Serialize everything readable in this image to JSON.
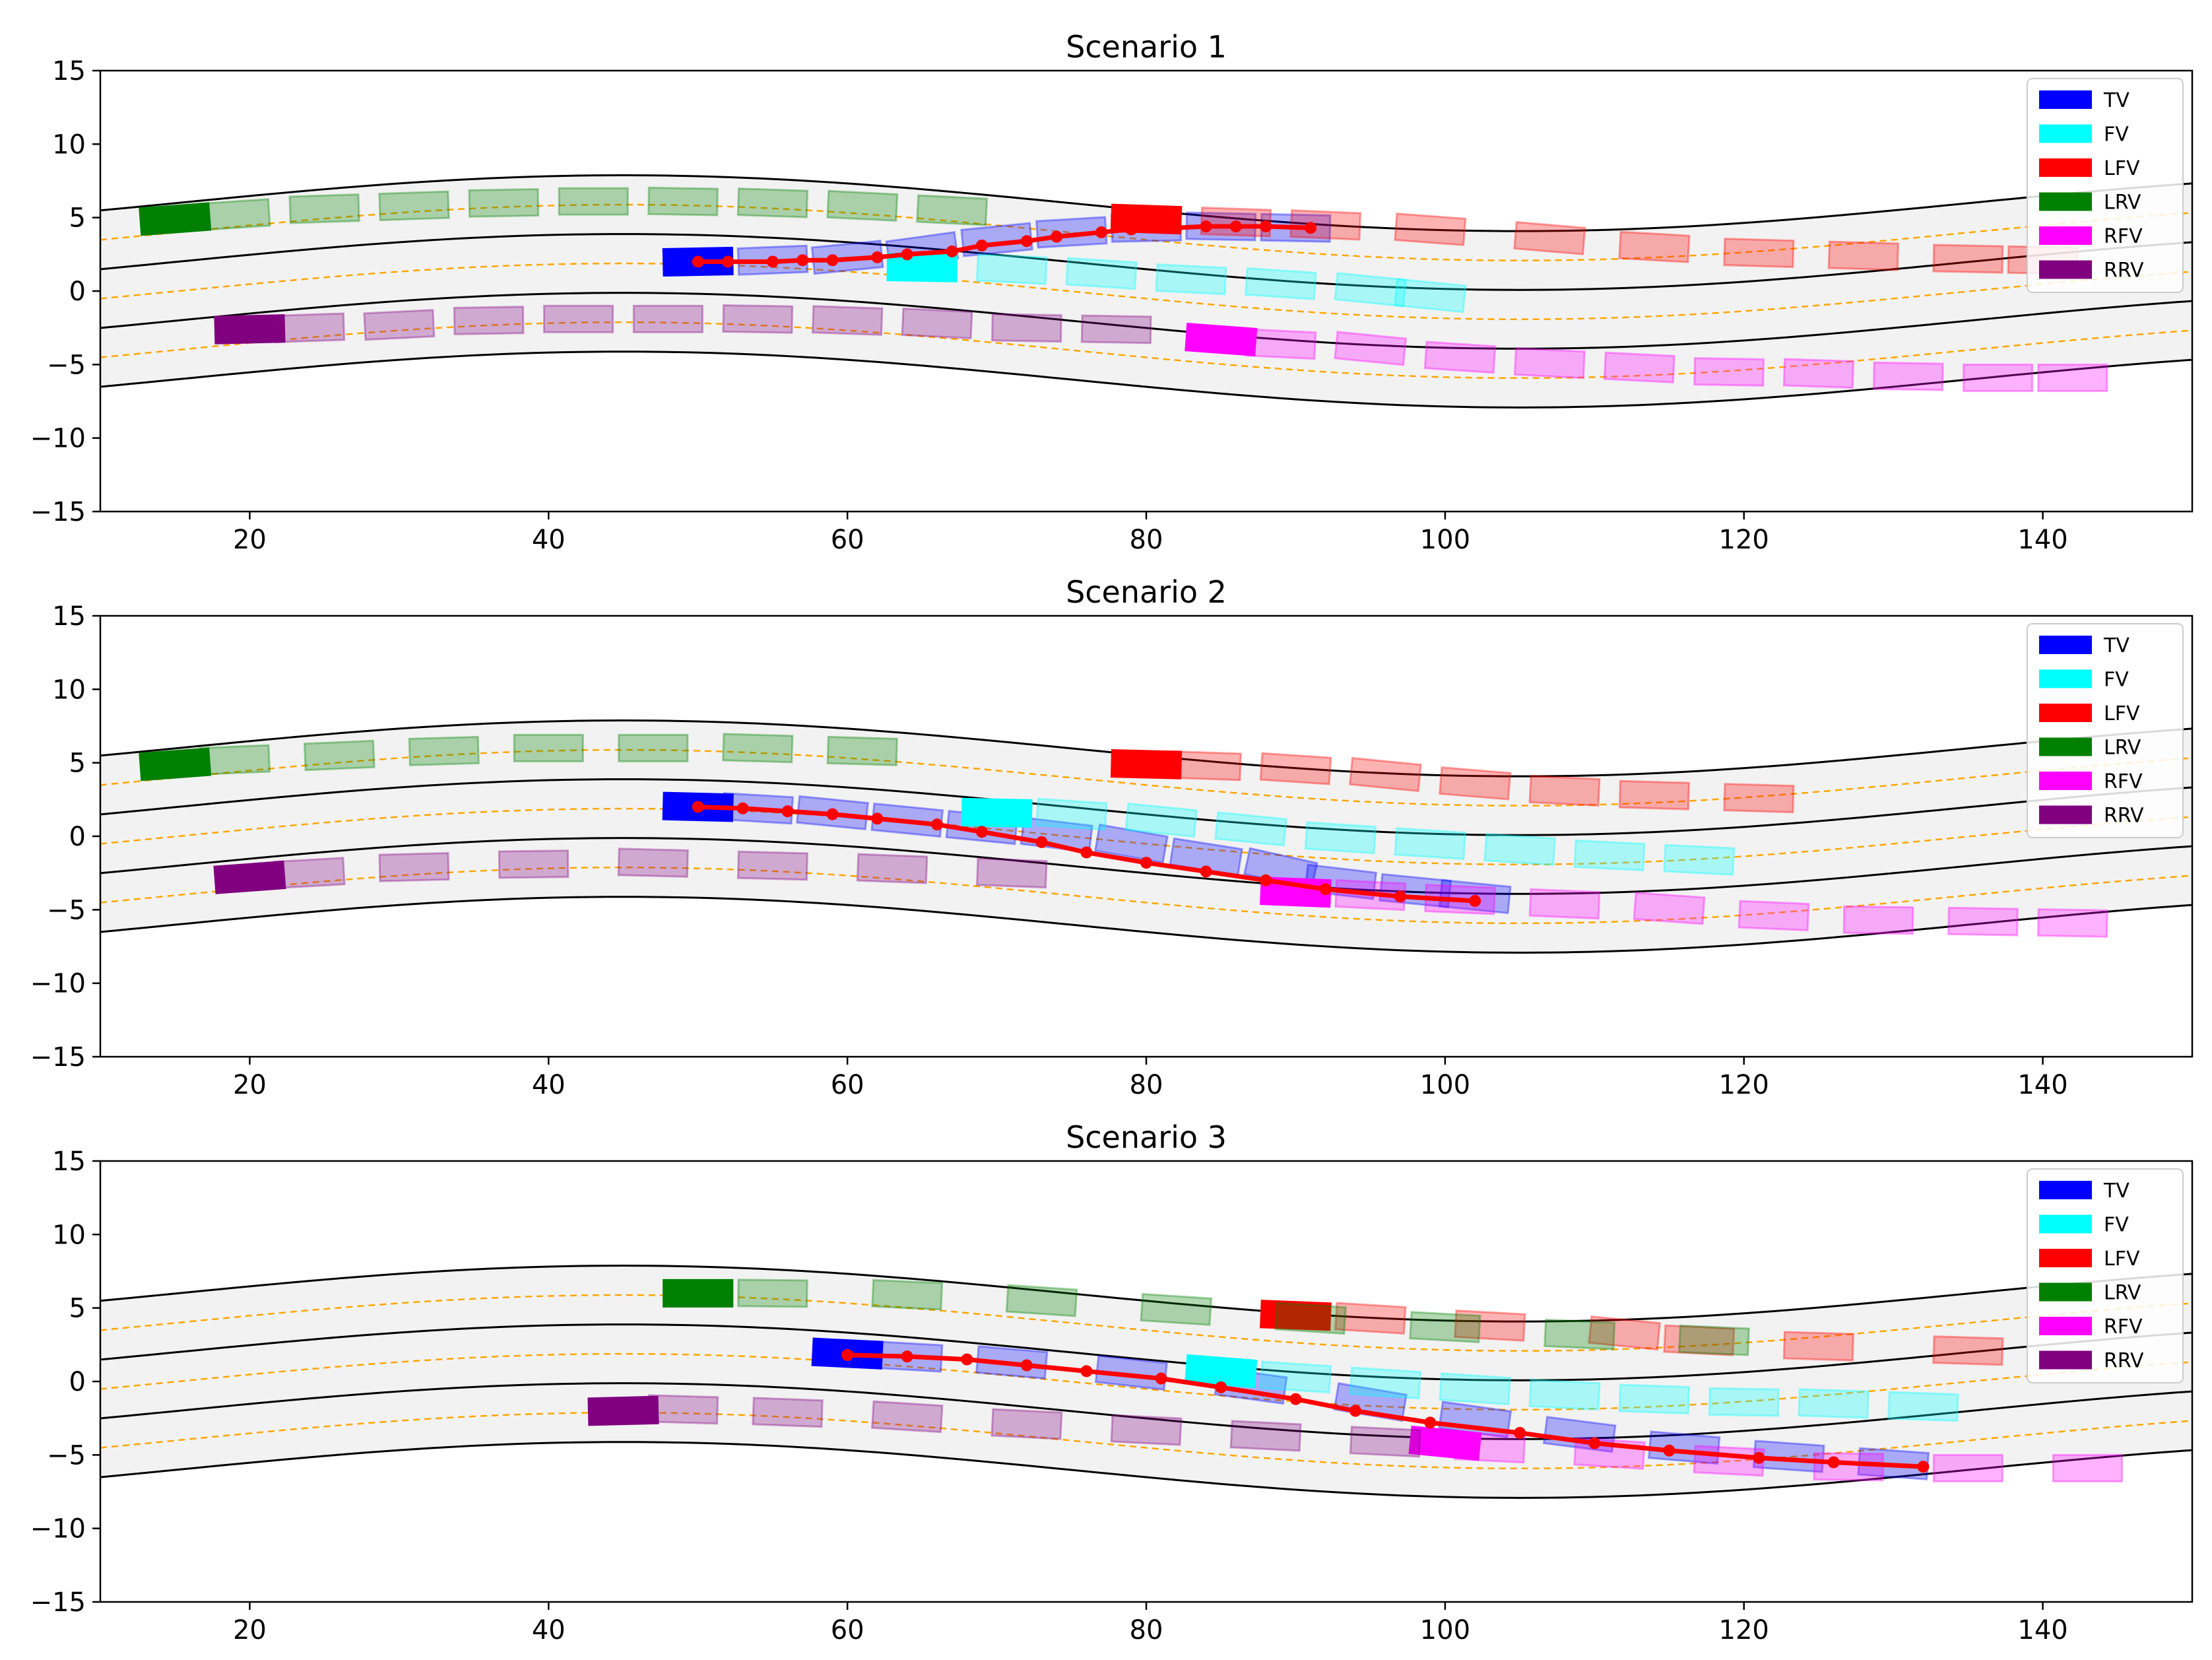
{
  "chart_data": {
    "type": "trajectory",
    "x_ticks": [
      20,
      40,
      60,
      80,
      100,
      120,
      140
    ],
    "y_ticks": [
      15,
      10,
      5,
      0,
      -5,
      -10,
      -15
    ],
    "xlim": [
      10,
      150
    ],
    "ylim": [
      -15,
      15
    ],
    "grid": false,
    "legend_placement": "top-right",
    "legend": [
      {
        "label": "TV",
        "color": "#0000ff"
      },
      {
        "label": "FV",
        "color": "#00ffff"
      },
      {
        "label": "LFV",
        "color": "#ff0000"
      },
      {
        "label": "LRV",
        "color": "#008000"
      },
      {
        "label": "RFV",
        "color": "#ff00ff"
      },
      {
        "label": "RRV",
        "color": "#800080"
      }
    ],
    "road": {
      "boundary_offsets": [
        4,
        0,
        -4
      ],
      "center_offsets": [
        2,
        -2
      ],
      "centerline_shape": "y = 1.98 + 1.9*sin(2*pi*(x-15)/120)"
    },
    "panels": [
      {
        "title": "Scenario 1",
        "vehicles": [
          {
            "type": "TV",
            "x": [
              50,
              55,
              60,
              65,
              70,
              75,
              80,
              85,
              90
            ],
            "y": [
              2,
              2.1,
              2.3,
              2.8,
              3.5,
              4,
              4.3,
              4.4,
              4.3
            ]
          },
          {
            "type": "FV",
            "x": [
              65,
              71,
              77,
              83,
              89,
              95,
              99
            ],
            "y": [
              1.6,
              1.5,
              1.2,
              0.8,
              0.5,
              0.1,
              -0.3
            ]
          },
          {
            "type": "LFV",
            "x": [
              80,
              86,
              92,
              99,
              107,
              114,
              121,
              128,
              135,
              140
            ],
            "y": [
              4.9,
              4.7,
              4.5,
              4.2,
              3.6,
              3,
              2.6,
              2.4,
              2.2,
              2.1
            ]
          },
          {
            "type": "LRV",
            "x": [
              15,
              19,
              25,
              31,
              37,
              43,
              49,
              55,
              61,
              67
            ],
            "y": [
              4.9,
              5.2,
              5.6,
              5.8,
              6,
              6.1,
              6.1,
              6,
              5.8,
              5.5
            ]
          },
          {
            "type": "RFV",
            "x": [
              85,
              89,
              95,
              101,
              107,
              113,
              119,
              125,
              131,
              137,
              142
            ],
            "y": [
              -3.3,
              -3.6,
              -3.9,
              -4.5,
              -4.9,
              -5.2,
              -5.5,
              -5.6,
              -5.8,
              -5.9,
              -5.9
            ]
          },
          {
            "type": "RRV",
            "x": [
              20,
              24,
              30,
              36,
              42,
              48,
              54,
              60,
              66,
              72,
              78
            ],
            "y": [
              -2.6,
              -2.5,
              -2.3,
              -2,
              -1.9,
              -1.9,
              -1.9,
              -2,
              -2.2,
              -2.5,
              -2.6
            ]
          }
        ],
        "trajectory": {
          "x": [
            50,
            52,
            55,
            57,
            59,
            62,
            64,
            67,
            69,
            72,
            74,
            77,
            79,
            82,
            84,
            86,
            88,
            91
          ],
          "y": [
            2,
            2,
            2,
            2.1,
            2.1,
            2.3,
            2.5,
            2.7,
            3.1,
            3.4,
            3.7,
            4,
            4.2,
            4.3,
            4.4,
            4.4,
            4.4,
            4.3
          ]
        }
      },
      {
        "title": "Scenario 2",
        "vehicles": [
          {
            "type": "TV",
            "x": [
              50,
              54,
              59,
              64,
              69,
              74,
              79,
              84,
              89,
              93,
              98,
              102
            ],
            "y": [
              2,
              1.9,
              1.6,
              1.1,
              0.6,
              0.1,
              -0.5,
              -1.4,
              -2.2,
              -3.1,
              -3.7,
              -4.1
            ]
          },
          {
            "type": "FV",
            "x": [
              70,
              75,
              81,
              87,
              93,
              99,
              105,
              111,
              117
            ],
            "y": [
              1.6,
              1.5,
              1.1,
              0.5,
              -0.1,
              -0.5,
              -0.9,
              -1.3,
              -1.6
            ]
          },
          {
            "type": "LFV",
            "x": [
              80,
              84,
              90,
              96,
              102,
              108,
              114,
              121
            ],
            "y": [
              4.9,
              4.8,
              4.6,
              4.2,
              3.6,
              3.1,
              2.8,
              2.6
            ]
          },
          {
            "type": "LRV",
            "x": [
              15,
              19,
              26,
              33,
              40,
              47,
              54,
              61
            ],
            "y": [
              4.9,
              5.2,
              5.5,
              5.8,
              6,
              6,
              6,
              5.8
            ]
          },
          {
            "type": "RFV",
            "x": [
              90,
              95,
              101,
              108,
              115,
              122,
              129,
              136,
              142
            ],
            "y": [
              -3.8,
              -4,
              -4.3,
              -4.6,
              -4.9,
              -5.4,
              -5.7,
              -5.8,
              -5.9
            ]
          },
          {
            "type": "RRV",
            "x": [
              20,
              24,
              31,
              39,
              47,
              55,
              63,
              71
            ],
            "y": [
              -2.8,
              -2.5,
              -2.1,
              -1.9,
              -1.8,
              -2,
              -2.2,
              -2.5
            ]
          }
        ],
        "trajectory": {
          "x": [
            50,
            53,
            56,
            59,
            62,
            66,
            69,
            73,
            76,
            80,
            84,
            88,
            92,
            97,
            102
          ],
          "y": [
            2,
            1.9,
            1.7,
            1.5,
            1.2,
            0.8,
            0.3,
            -0.4,
            -1.1,
            -1.8,
            -2.4,
            -3,
            -3.6,
            -4.1,
            -4.4
          ]
        }
      },
      {
        "title": "Scenario 3",
        "vehicles": [
          {
            "type": "TV",
            "x": [
              60,
              64,
              71,
              79,
              87,
              95,
              102,
              109,
              116,
              123,
              130
            ],
            "y": [
              1.9,
              1.7,
              1.3,
              0.6,
              -0.3,
              -1.4,
              -2.6,
              -3.6,
              -4.5,
              -5.1,
              -5.6
            ]
          },
          {
            "type": "FV",
            "x": [
              85,
              90,
              96,
              102,
              108,
              114,
              120,
              126,
              132
            ],
            "y": [
              0.7,
              0.3,
              -0.1,
              -0.5,
              -0.9,
              -1.2,
              -1.4,
              -1.5,
              -1.7
            ]
          },
          {
            "type": "LFV",
            "x": [
              90,
              95,
              103,
              112,
              117,
              125,
              135
            ],
            "y": [
              4.5,
              4.3,
              3.8,
              3.3,
              2.8,
              2.4,
              2.1
            ]
          },
          {
            "type": "LRV",
            "x": [
              50,
              55,
              64,
              73,
              82,
              91,
              100,
              109,
              118
            ],
            "y": [
              6,
              6,
              5.9,
              5.5,
              4.9,
              4.3,
              3.7,
              3.2,
              2.8
            ]
          },
          {
            "type": "RFV",
            "x": [
              100,
              103,
              111,
              119,
              127,
              135,
              143
            ],
            "y": [
              -4.2,
              -4.5,
              -4.9,
              -5.4,
              -5.8,
              -5.9,
              -5.9
            ]
          },
          {
            "type": "RRV",
            "x": [
              45,
              49,
              56,
              64,
              72,
              80,
              88,
              96
            ],
            "y": [
              -2,
              -1.9,
              -2.1,
              -2.4,
              -2.9,
              -3.3,
              -3.7,
              -4.1
            ]
          }
        ],
        "trajectory": {
          "x": [
            60,
            64,
            68,
            72,
            76,
            81,
            85,
            90,
            94,
            99,
            105,
            110,
            115,
            121,
            126,
            132
          ],
          "y": [
            1.8,
            1.7,
            1.5,
            1.1,
            0.7,
            0.2,
            -0.4,
            -1.2,
            -2,
            -2.8,
            -3.5,
            -4.2,
            -4.7,
            -5.2,
            -5.5,
            -5.8
          ]
        }
      }
    ]
  }
}
